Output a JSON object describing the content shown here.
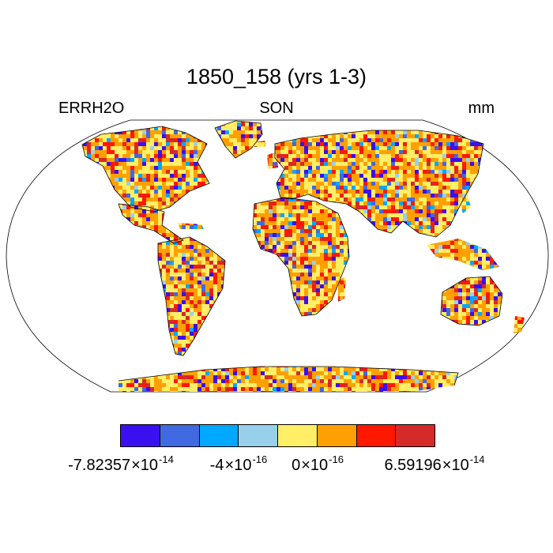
{
  "title": "1850_158 (yrs 1-3)",
  "left_label": "ERRH2O",
  "center_label": "SON",
  "right_label": "mm",
  "colorbar": {
    "colors": [
      "#3a10f0",
      "#4169e1",
      "#00a8ff",
      "#98d0ec",
      "#ffee66",
      "#ffa000",
      "#ff1800",
      "#d42a2a"
    ],
    "labels": [
      {
        "mantissa": "-7.82357",
        "times": "×10",
        "exponent": "-14"
      },
      {
        "mantissa": "-4",
        "times": "×10",
        "exponent": "-16"
      },
      {
        "mantissa": "0",
        "times": "×10",
        "exponent": "-16"
      },
      {
        "mantissa": "6.59196",
        "times": "×10",
        "exponent": "-14"
      }
    ]
  }
}
